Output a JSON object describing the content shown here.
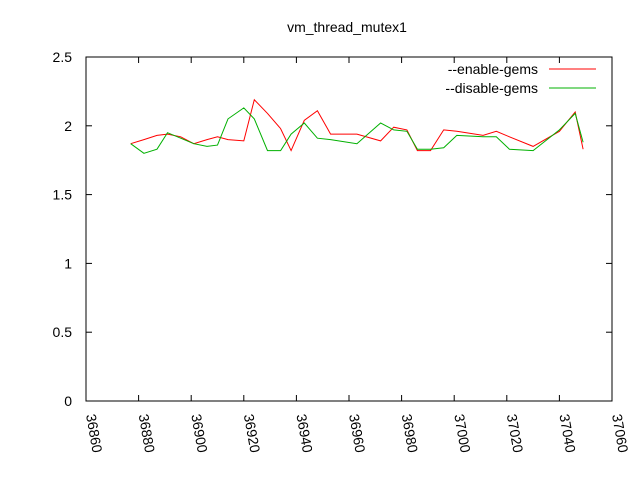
{
  "chart_data": {
    "type": "line",
    "title": "vm_thread_mutex1",
    "xlabel": "",
    "ylabel": "",
    "xlim": [
      36860,
      37060
    ],
    "ylim": [
      0,
      2.5
    ],
    "x_ticks": [
      36860,
      36880,
      36900,
      36920,
      36940,
      36960,
      36980,
      37000,
      37020,
      37040,
      37060
    ],
    "y_ticks": [
      0,
      0.5,
      1,
      1.5,
      2,
      2.5
    ],
    "y_tick_labels": [
      "0",
      "0.5",
      "1",
      "1.5",
      "2",
      "2.5"
    ],
    "grid": false,
    "legend_position": "top-right",
    "series": [
      {
        "name": "--enable-gems",
        "color": "#ff0000",
        "x": [
          36877,
          36882,
          36887,
          36891,
          36896,
          36901,
          36906,
          36910,
          36914,
          36920,
          36924,
          36929,
          36934,
          36938,
          36943,
          36948,
          36953,
          36963,
          36972,
          36977,
          36982,
          36986,
          36991,
          36996,
          37001,
          37011,
          37016,
          37021,
          37030,
          37040,
          37046,
          37049
        ],
        "y": [
          1.87,
          1.9,
          1.93,
          1.94,
          1.92,
          1.87,
          1.9,
          1.92,
          1.9,
          1.89,
          2.19,
          2.09,
          1.98,
          1.82,
          2.04,
          2.11,
          1.94,
          1.94,
          1.89,
          1.99,
          1.97,
          1.82,
          1.82,
          1.97,
          1.96,
          1.93,
          1.96,
          1.92,
          1.85,
          1.96,
          2.1,
          1.83
        ]
      },
      {
        "name": "--disable-gems",
        "color": "#00b000",
        "x": [
          36877,
          36882,
          36887,
          36891,
          36896,
          36901,
          36906,
          36910,
          36914,
          36920,
          36924,
          36929,
          36934,
          36938,
          36943,
          36948,
          36953,
          36963,
          36972,
          36977,
          36982,
          36986,
          36991,
          36996,
          37001,
          37011,
          37016,
          37021,
          37030,
          37040,
          37046,
          37049
        ],
        "y": [
          1.87,
          1.8,
          1.83,
          1.95,
          1.91,
          1.87,
          1.85,
          1.86,
          2.05,
          2.13,
          2.05,
          1.82,
          1.82,
          1.94,
          2.02,
          1.91,
          1.9,
          1.87,
          2.02,
          1.97,
          1.96,
          1.83,
          1.83,
          1.84,
          1.93,
          1.92,
          1.92,
          1.83,
          1.82,
          1.97,
          2.09,
          1.88
        ]
      }
    ]
  }
}
